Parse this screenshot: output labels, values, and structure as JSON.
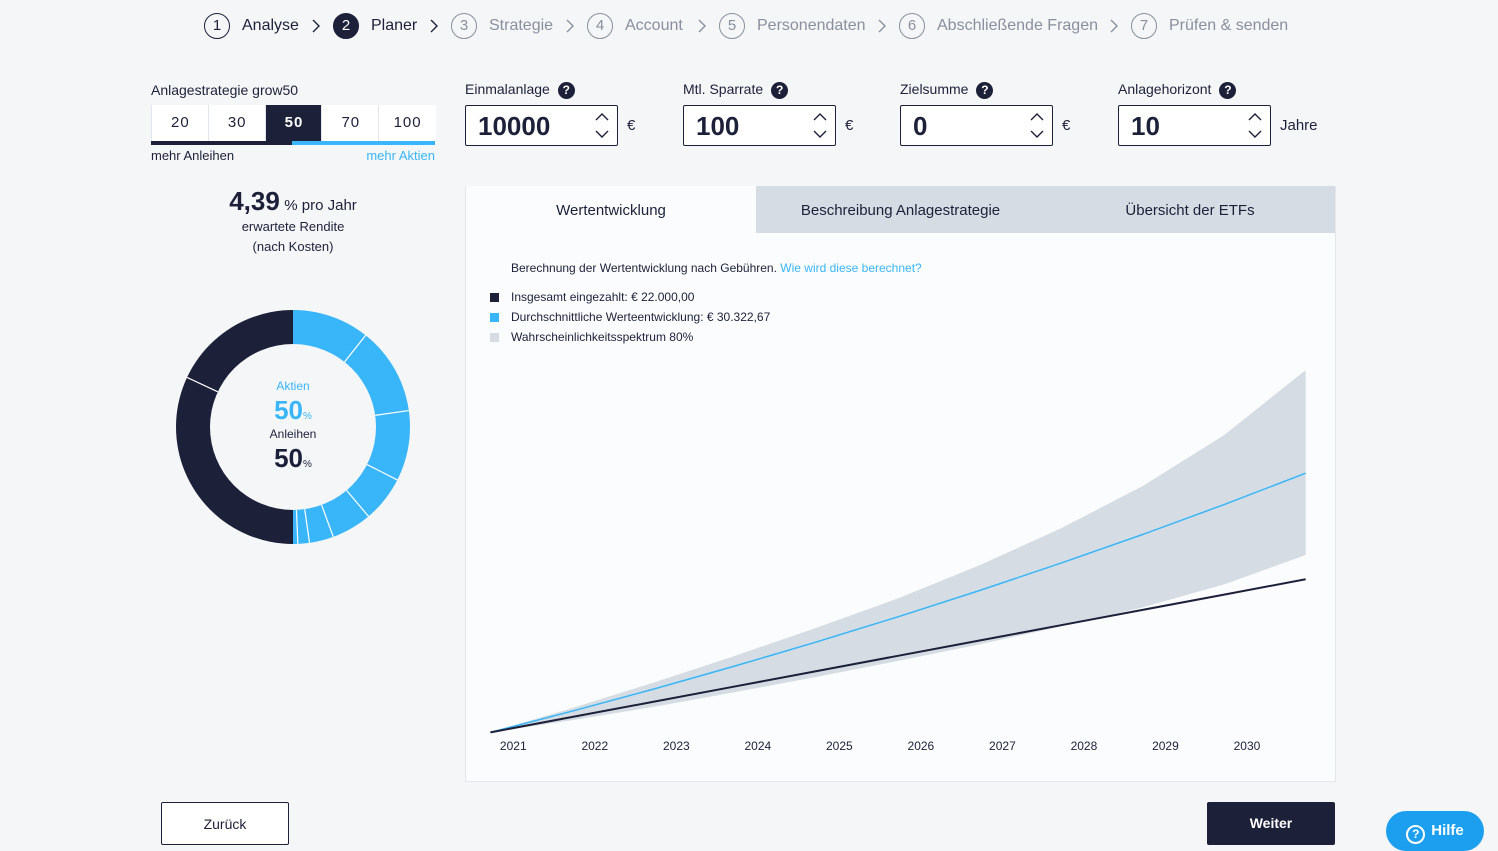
{
  "steps": [
    {
      "number": "1",
      "label": "Analyse"
    },
    {
      "number": "2",
      "label": "Planer"
    },
    {
      "number": "3",
      "label": "Strategie"
    },
    {
      "number": "4",
      "label": "Account"
    },
    {
      "number": "5",
      "label": "Personendaten"
    },
    {
      "number": "6",
      "label": "Abschließende Fragen"
    },
    {
      "number": "7",
      "label": "Prüfen & senden"
    }
  ],
  "strategy": {
    "label": "Anlagestrategie grow50",
    "options": [
      "20",
      "30",
      "50",
      "70",
      "100"
    ],
    "left_label": "mehr Anleihen",
    "right_label": "mehr Aktien"
  },
  "help_icon": "?",
  "inputs": [
    {
      "label": "Einmalanlage",
      "value": "10000",
      "unit": "€"
    },
    {
      "label": "Mtl. Sparrate",
      "value": "100",
      "unit": "€"
    },
    {
      "label": "Zielsumme",
      "value": "0",
      "unit": "€"
    },
    {
      "label": "Anlagehorizont",
      "value": "10",
      "unit": "Jahre"
    }
  ],
  "return": {
    "value": "4,39",
    "unit": "% pro Jahr",
    "line1": "erwartete Rendite",
    "line2": "(nach Kosten)"
  },
  "allocation": {
    "stocks_label": "Aktien",
    "stocks": 50,
    "bonds_label": "Anleihen",
    "bonds": 50,
    "unit": "%"
  },
  "tabs": [
    "Wertentwicklung",
    "Beschreibung Anlagestrategie",
    "Übersicht der ETFs"
  ],
  "chart_data": {
    "type": "line",
    "subtitle": "Berechnung der Wertentwicklung nach Gebühren.",
    "link": "Wie wird diese berechnet?",
    "x": [
      2020.72,
      2021.72,
      2022.72,
      2023.72,
      2024.72,
      2025.72,
      2026.72,
      2027.72,
      2028.72,
      2029.72,
      2030.72
    ],
    "xlim": [
      2020.42,
      2031.08
    ],
    "xticks": [
      2021,
      2022,
      2023,
      2024,
      2025,
      2026,
      2027,
      2028,
      2029,
      2030
    ],
    "ylim": [
      9400,
      48600
    ],
    "series": [
      {
        "name": "Insgesamt eingezahlt: € 22.000,00",
        "color": "#1d2039",
        "values": [
          10000,
          11200,
          12400,
          13600,
          14800,
          16000,
          17200,
          18400,
          19600,
          20800,
          22000
        ]
      },
      {
        "name": "Durchschnittliche Werteentwicklung: € 30.322,67",
        "color": "#38b6f9",
        "values": [
          10000,
          11660,
          13390,
          15200,
          17090,
          19060,
          21120,
          23270,
          25510,
          27860,
          30320
        ]
      },
      {
        "name": "Wahrscheinlichkeitsspektrum 80%",
        "color": "#d5dce3",
        "high": [
          10000,
          11900,
          13900,
          16000,
          18200,
          20500,
          23100,
          26000,
          29300,
          33300,
          38400
        ],
        "low": [
          10000,
          10950,
          12000,
          13150,
          14350,
          15600,
          16900,
          18300,
          19800,
          21600,
          23900
        ]
      }
    ]
  },
  "buttons": {
    "back": "Zurück",
    "next": "Weiter",
    "help": "Hilfe"
  }
}
